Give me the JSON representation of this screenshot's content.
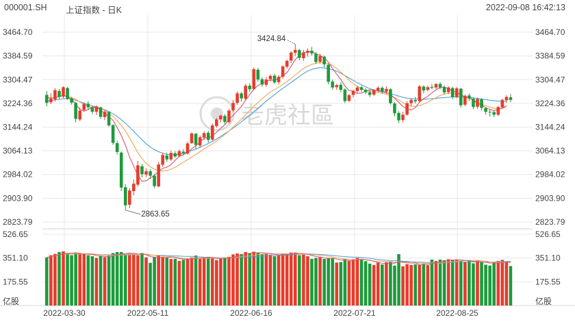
{
  "header": {
    "symbol": "000001.SH",
    "title": "上证指数 - 日K",
    "datetime": "2022-09-08 16:42:13"
  },
  "watermark": "老虎社區",
  "colors": {
    "up": "#e53d2c",
    "down": "#1e9a3c",
    "ma5": "#d8536d",
    "ma10": "#f0a44a",
    "ma20": "#4a9fe0",
    "grid": "#e7e7e7"
  },
  "price_axis": {
    "labels": [
      "3464.70",
      "3384.59",
      "3304.47",
      "3224.36",
      "3144.24",
      "3064.13",
      "2984.02",
      "2903.90",
      "2823.79"
    ],
    "max": 3464.7,
    "min": 2823.79
  },
  "volume_axis": {
    "labels": [
      "526.65",
      "351.10",
      "175.55"
    ],
    "unit": "亿股",
    "max": 526.65
  },
  "x_labels": [
    "2022-03-30",
    "2022-05-11",
    "2022-06-16",
    "2022-07-21",
    "2022-08-25"
  ],
  "annotations": {
    "high": "3424.84",
    "low": "2863.65"
  },
  "chart_data": {
    "type": "candlestick",
    "series": [
      {
        "o": 3253,
        "c": 3226,
        "h": 3266,
        "l": 3214,
        "v": 355
      },
      {
        "o": 3228,
        "c": 3240,
        "h": 3258,
        "l": 3222,
        "v": 372
      },
      {
        "o": 3238,
        "c": 3269,
        "h": 3276,
        "l": 3231,
        "v": 382
      },
      {
        "o": 3266,
        "c": 3246,
        "h": 3272,
        "l": 3238,
        "v": 396
      },
      {
        "o": 3247,
        "c": 3279,
        "h": 3282,
        "l": 3242,
        "v": 400
      },
      {
        "o": 3276,
        "c": 3240,
        "h": 3280,
        "l": 3236,
        "v": 386
      },
      {
        "o": 3241,
        "c": 3227,
        "h": 3246,
        "l": 3220,
        "v": 372
      },
      {
        "o": 3226,
        "c": 3172,
        "h": 3230,
        "l": 3160,
        "v": 392
      },
      {
        "o": 3170,
        "c": 3200,
        "h": 3211,
        "l": 3164,
        "v": 380
      },
      {
        "o": 3202,
        "c": 3222,
        "h": 3228,
        "l": 3197,
        "v": 380
      },
      {
        "o": 3223,
        "c": 3211,
        "h": 3232,
        "l": 3203,
        "v": 372
      },
      {
        "o": 3210,
        "c": 3196,
        "h": 3214,
        "l": 3188,
        "v": 365
      },
      {
        "o": 3196,
        "c": 3214,
        "h": 3218,
        "l": 3185,
        "v": 352
      },
      {
        "o": 3211,
        "c": 3179,
        "h": 3213,
        "l": 3172,
        "v": 366
      },
      {
        "o": 3178,
        "c": 3196,
        "h": 3201,
        "l": 3168,
        "v": 358
      },
      {
        "o": 3195,
        "c": 3150,
        "h": 3197,
        "l": 3145,
        "v": 368
      },
      {
        "o": 3151,
        "c": 3091,
        "h": 3153,
        "l": 3084,
        "v": 388
      },
      {
        "o": 3090,
        "c": 3060,
        "h": 3098,
        "l": 3051,
        "v": 395
      },
      {
        "o": 3058,
        "c": 2940,
        "h": 3062,
        "l": 2928,
        "v": 396
      },
      {
        "o": 2941,
        "c": 2880,
        "h": 2952,
        "l": 2864,
        "v": 378
      },
      {
        "o": 2882,
        "c": 2930,
        "h": 2938,
        "l": 2870,
        "v": 382
      },
      {
        "o": 2928,
        "c": 2953,
        "h": 2968,
        "l": 2914,
        "v": 378
      },
      {
        "o": 2950,
        "c": 3015,
        "h": 3030,
        "l": 2943,
        "v": 372
      },
      {
        "o": 3012,
        "c": 2985,
        "h": 3020,
        "l": 2974,
        "v": 388
      },
      {
        "o": 2984,
        "c": 2995,
        "h": 3005,
        "l": 2975,
        "v": 356
      },
      {
        "o": 2995,
        "c": 2980,
        "h": 3002,
        "l": 2969,
        "v": 316
      },
      {
        "o": 2980,
        "c": 2945,
        "h": 2986,
        "l": 2938,
        "v": 358
      },
      {
        "o": 2944,
        "c": 3018,
        "h": 3026,
        "l": 2941,
        "v": 374
      },
      {
        "o": 3017,
        "c": 3050,
        "h": 3058,
        "l": 3010,
        "v": 360
      },
      {
        "o": 3048,
        "c": 3035,
        "h": 3058,
        "l": 3027,
        "v": 358
      },
      {
        "o": 3035,
        "c": 3057,
        "h": 3065,
        "l": 3030,
        "v": 344
      },
      {
        "o": 3056,
        "c": 3045,
        "h": 3063,
        "l": 3040,
        "v": 346
      },
      {
        "o": 3047,
        "c": 3063,
        "h": 3068,
        "l": 3042,
        "v": 330
      },
      {
        "o": 3061,
        "c": 3055,
        "h": 3070,
        "l": 3048,
        "v": 338
      },
      {
        "o": 3055,
        "c": 3089,
        "h": 3095,
        "l": 3051,
        "v": 346
      },
      {
        "o": 3090,
        "c": 3123,
        "h": 3126,
        "l": 3087,
        "v": 356
      },
      {
        "o": 3122,
        "c": 3084,
        "h": 3124,
        "l": 3069,
        "v": 370
      },
      {
        "o": 3082,
        "c": 3110,
        "h": 3116,
        "l": 3074,
        "v": 345
      },
      {
        "o": 3109,
        "c": 3124,
        "h": 3130,
        "l": 3100,
        "v": 354
      },
      {
        "o": 3125,
        "c": 3101,
        "h": 3131,
        "l": 3092,
        "v": 360
      },
      {
        "o": 3102,
        "c": 3150,
        "h": 3156,
        "l": 3098,
        "v": 352
      },
      {
        "o": 3148,
        "c": 3170,
        "h": 3175,
        "l": 3142,
        "v": 336
      },
      {
        "o": 3170,
        "c": 3183,
        "h": 3186,
        "l": 3160,
        "v": 346
      },
      {
        "o": 3182,
        "c": 3162,
        "h": 3188,
        "l": 3154,
        "v": 356
      },
      {
        "o": 3161,
        "c": 3200,
        "h": 3205,
        "l": 3156,
        "v": 360
      },
      {
        "o": 3201,
        "c": 3226,
        "h": 3236,
        "l": 3195,
        "v": 378
      },
      {
        "o": 3226,
        "c": 3258,
        "h": 3265,
        "l": 3220,
        "v": 385
      },
      {
        "o": 3258,
        "c": 3241,
        "h": 3263,
        "l": 3230,
        "v": 380
      },
      {
        "o": 3240,
        "c": 3284,
        "h": 3290,
        "l": 3234,
        "v": 395
      },
      {
        "o": 3284,
        "c": 3272,
        "h": 3292,
        "l": 3264,
        "v": 388
      },
      {
        "o": 3273,
        "c": 3340,
        "h": 3345,
        "l": 3268,
        "v": 398
      },
      {
        "o": 3338,
        "c": 3305,
        "h": 3344,
        "l": 3298,
        "v": 392
      },
      {
        "o": 3306,
        "c": 3288,
        "h": 3313,
        "l": 3281,
        "v": 378
      },
      {
        "o": 3287,
        "c": 3305,
        "h": 3313,
        "l": 3280,
        "v": 380
      },
      {
        "o": 3306,
        "c": 3317,
        "h": 3322,
        "l": 3298,
        "v": 376
      },
      {
        "o": 3318,
        "c": 3295,
        "h": 3324,
        "l": 3290,
        "v": 364
      },
      {
        "o": 3296,
        "c": 3314,
        "h": 3320,
        "l": 3288,
        "v": 376
      },
      {
        "o": 3314,
        "c": 3349,
        "h": 3354,
        "l": 3308,
        "v": 385
      },
      {
        "o": 3348,
        "c": 3368,
        "h": 3372,
        "l": 3342,
        "v": 385
      },
      {
        "o": 3369,
        "c": 3396,
        "h": 3400,
        "l": 3360,
        "v": 392
      },
      {
        "o": 3395,
        "c": 3405,
        "h": 3424,
        "l": 3385,
        "v": 392
      },
      {
        "o": 3404,
        "c": 3378,
        "h": 3409,
        "l": 3370,
        "v": 372
      },
      {
        "o": 3377,
        "c": 3396,
        "h": 3405,
        "l": 3368,
        "v": 376
      },
      {
        "o": 3395,
        "c": 3402,
        "h": 3410,
        "l": 3382,
        "v": 365
      },
      {
        "o": 3402,
        "c": 3393,
        "h": 3415,
        "l": 3386,
        "v": 345
      },
      {
        "o": 3392,
        "c": 3364,
        "h": 3398,
        "l": 3358,
        "v": 352
      },
      {
        "o": 3365,
        "c": 3384,
        "h": 3392,
        "l": 3359,
        "v": 356
      },
      {
        "o": 3382,
        "c": 3356,
        "h": 3386,
        "l": 3346,
        "v": 345
      },
      {
        "o": 3355,
        "c": 3297,
        "h": 3358,
        "l": 3288,
        "v": 350
      },
      {
        "o": 3298,
        "c": 3278,
        "h": 3305,
        "l": 3270,
        "v": 348
      },
      {
        "o": 3279,
        "c": 3286,
        "h": 3290,
        "l": 3270,
        "v": 318
      },
      {
        "o": 3287,
        "c": 3270,
        "h": 3296,
        "l": 3262,
        "v": 322
      },
      {
        "o": 3271,
        "c": 3232,
        "h": 3276,
        "l": 3225,
        "v": 345
      },
      {
        "o": 3233,
        "c": 3252,
        "h": 3256,
        "l": 3228,
        "v": 330
      },
      {
        "o": 3253,
        "c": 3267,
        "h": 3270,
        "l": 3245,
        "v": 342
      },
      {
        "o": 3266,
        "c": 3278,
        "h": 3284,
        "l": 3260,
        "v": 352
      },
      {
        "o": 3279,
        "c": 3270,
        "h": 3284,
        "l": 3263,
        "v": 344
      },
      {
        "o": 3270,
        "c": 3262,
        "h": 3276,
        "l": 3256,
        "v": 328
      },
      {
        "o": 3262,
        "c": 3253,
        "h": 3268,
        "l": 3246,
        "v": 310
      },
      {
        "o": 3254,
        "c": 3268,
        "h": 3272,
        "l": 3249,
        "v": 300
      },
      {
        "o": 3268,
        "c": 3277,
        "h": 3282,
        "l": 3262,
        "v": 318
      },
      {
        "o": 3277,
        "c": 3264,
        "h": 3282,
        "l": 3257,
        "v": 304
      },
      {
        "o": 3264,
        "c": 3273,
        "h": 3282,
        "l": 3256,
        "v": 320
      },
      {
        "o": 3272,
        "c": 3225,
        "h": 3276,
        "l": 3220,
        "v": 326
      },
      {
        "o": 3224,
        "c": 3191,
        "h": 3228,
        "l": 3180,
        "v": 295
      },
      {
        "o": 3192,
        "c": 3167,
        "h": 3198,
        "l": 3158,
        "v": 380
      },
      {
        "o": 3168,
        "c": 3186,
        "h": 3196,
        "l": 3160,
        "v": 290
      },
      {
        "o": 3186,
        "c": 3225,
        "h": 3231,
        "l": 3183,
        "v": 306
      },
      {
        "o": 3225,
        "c": 3236,
        "h": 3242,
        "l": 3214,
        "v": 300
      },
      {
        "o": 3235,
        "c": 3231,
        "h": 3246,
        "l": 3224,
        "v": 305
      },
      {
        "o": 3232,
        "c": 3282,
        "h": 3286,
        "l": 3228,
        "v": 302
      },
      {
        "o": 3281,
        "c": 3268,
        "h": 3286,
        "l": 3259,
        "v": 308
      },
      {
        "o": 3270,
        "c": 3279,
        "h": 3284,
        "l": 3265,
        "v": 298
      },
      {
        "o": 3280,
        "c": 3277,
        "h": 3290,
        "l": 3271,
        "v": 340
      },
      {
        "o": 3278,
        "c": 3290,
        "h": 3292,
        "l": 3272,
        "v": 330
      },
      {
        "o": 3290,
        "c": 3278,
        "h": 3296,
        "l": 3272,
        "v": 340
      },
      {
        "o": 3279,
        "c": 3261,
        "h": 3285,
        "l": 3255,
        "v": 335
      },
      {
        "o": 3262,
        "c": 3278,
        "h": 3282,
        "l": 3256,
        "v": 342
      },
      {
        "o": 3276,
        "c": 3245,
        "h": 3280,
        "l": 3238,
        "v": 338
      },
      {
        "o": 3245,
        "c": 3275,
        "h": 3280,
        "l": 3242,
        "v": 340
      },
      {
        "o": 3274,
        "c": 3218,
        "h": 3276,
        "l": 3210,
        "v": 332
      },
      {
        "o": 3220,
        "c": 3250,
        "h": 3254,
        "l": 3214,
        "v": 320
      },
      {
        "o": 3251,
        "c": 3241,
        "h": 3258,
        "l": 3232,
        "v": 330
      },
      {
        "o": 3240,
        "c": 3212,
        "h": 3244,
        "l": 3205,
        "v": 312
      },
      {
        "o": 3213,
        "c": 3239,
        "h": 3244,
        "l": 3206,
        "v": 336
      },
      {
        "o": 3238,
        "c": 3209,
        "h": 3242,
        "l": 3201,
        "v": 322
      },
      {
        "o": 3208,
        "c": 3196,
        "h": 3211,
        "l": 3186,
        "v": 302
      },
      {
        "o": 3196,
        "c": 3195,
        "h": 3204,
        "l": 3180,
        "v": 296
      },
      {
        "o": 3195,
        "c": 3186,
        "h": 3200,
        "l": 3178,
        "v": 318
      },
      {
        "o": 3186,
        "c": 3212,
        "h": 3216,
        "l": 3182,
        "v": 330
      },
      {
        "o": 3211,
        "c": 3236,
        "h": 3240,
        "l": 3206,
        "v": 338
      },
      {
        "o": 3235,
        "c": 3246,
        "h": 3252,
        "l": 3226,
        "v": 326
      },
      {
        "o": 3245,
        "c": 3236,
        "h": 3256,
        "l": 3228,
        "v": 292
      }
    ],
    "ma5": [
      3245,
      3242,
      3244,
      3248,
      3252,
      3247,
      3239,
      3222,
      3204,
      3198,
      3203,
      3213,
      3211,
      3203,
      3190,
      3180,
      3167,
      3143,
      3116,
      3083,
      3043,
      3012,
      2981,
      2961,
      2963,
      2972,
      2982,
      2994,
      3005,
      3009,
      3017,
      3032,
      3046,
      3051,
      3058,
      3071,
      3082,
      3092,
      3107,
      3109,
      3114,
      3127,
      3140,
      3152,
      3170,
      3184,
      3199,
      3214,
      3235,
      3254,
      3272,
      3285,
      3292,
      3299,
      3303,
      3303,
      3309,
      3318,
      3328,
      3350,
      3372,
      3387,
      3395,
      3400,
      3398,
      3392,
      3386,
      3378,
      3364,
      3342,
      3323,
      3305,
      3283,
      3268,
      3265,
      3258,
      3259,
      3265,
      3270,
      3269,
      3267,
      3265,
      3261,
      3255,
      3241,
      3228,
      3214,
      3206,
      3202,
      3210,
      3228,
      3240,
      3248,
      3260,
      3270,
      3278,
      3280,
      3274,
      3266,
      3262,
      3254,
      3246,
      3244,
      3236,
      3224,
      3219,
      3210,
      3204,
      3200,
      3203,
      3208,
      3217
    ],
    "ma10": [
      3244,
      3243,
      3244,
      3247,
      3250,
      3249,
      3244,
      3238,
      3229,
      3221,
      3214,
      3210,
      3209,
      3207,
      3201,
      3192,
      3180,
      3166,
      3150,
      3131,
      3108,
      3083,
      3058,
      3038,
      3022,
      3010,
      3002,
      2997,
      2996,
      2997,
      3002,
      3009,
      3017,
      3026,
      3034,
      3043,
      3052,
      3061,
      3071,
      3079,
      3087,
      3097,
      3108,
      3119,
      3131,
      3144,
      3158,
      3171,
      3186,
      3200,
      3214,
      3227,
      3240,
      3252,
      3263,
      3271,
      3279,
      3288,
      3298,
      3309,
      3320,
      3332,
      3342,
      3350,
      3356,
      3360,
      3362,
      3362,
      3359,
      3352,
      3342,
      3330,
      3317,
      3303,
      3291,
      3282,
      3275,
      3268,
      3265,
      3263,
      3261,
      3258,
      3255,
      3250,
      3244,
      3236,
      3227,
      3219,
      3215,
      3214,
      3217,
      3222,
      3228,
      3236,
      3244,
      3251,
      3256,
      3258,
      3258,
      3256,
      3252,
      3246,
      3241,
      3235,
      3228,
      3222,
      3217,
      3212,
      3208,
      3206,
      3208,
      3212
    ],
    "ma20": [
      3232,
      3234,
      3236,
      3238,
      3240,
      3240,
      3239,
      3235,
      3230,
      3225,
      3220,
      3216,
      3212,
      3208,
      3203,
      3197,
      3189,
      3180,
      3169,
      3157,
      3144,
      3130,
      3115,
      3101,
      3088,
      3077,
      3068,
      3061,
      3056,
      3052,
      3051,
      3051,
      3053,
      3056,
      3060,
      3065,
      3070,
      3076,
      3082,
      3089,
      3096,
      3104,
      3113,
      3122,
      3131,
      3141,
      3151,
      3162,
      3173,
      3184,
      3196,
      3208,
      3220,
      3232,
      3243,
      3254,
      3265,
      3275,
      3285,
      3295,
      3305,
      3315,
      3325,
      3333,
      3339,
      3343,
      3345,
      3344,
      3342,
      3338,
      3333,
      3326,
      3318,
      3310,
      3302,
      3294,
      3287,
      3280,
      3274,
      3270,
      3266,
      3263,
      3260,
      3257,
      3253,
      3249,
      3245,
      3242,
      3240,
      3239,
      3238,
      3238,
      3239,
      3240,
      3241,
      3243,
      3244,
      3245,
      3246,
      3246,
      3246,
      3245,
      3244,
      3243,
      3241,
      3239,
      3237,
      3235,
      3233,
      3232,
      3231,
      3232
    ]
  }
}
